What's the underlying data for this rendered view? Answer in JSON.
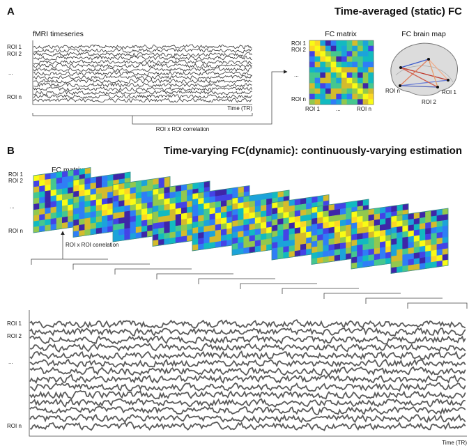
{
  "panel_a": {
    "letter": "A",
    "title": "Time-averaged (static) FC",
    "timeseries_label": "fMRI timeseries",
    "roi_labels": [
      "ROI 1",
      "ROI 2",
      "...",
      "ROI n"
    ],
    "time_label": "Time (TR)",
    "correlation_label": "ROI x ROI correlation",
    "matrix_label": "FC matrix",
    "matrix_row_labels": [
      "ROI 1",
      "ROI 2",
      "...",
      "ROI n"
    ],
    "matrix_col_labels": [
      "ROI 1",
      "...",
      "ROI n"
    ],
    "brain_label": "FC brain map",
    "brain_roi_labels": [
      "ROI n",
      "ROI 1",
      "ROI 2"
    ]
  },
  "panel_b": {
    "letter": "B",
    "title": "Time-varying FC(dynamic): continuously-varying estimation",
    "matrix_label": "FC matrix",
    "roi_labels": [
      "ROI 1",
      "ROI 2",
      "...",
      "ROI n"
    ],
    "correlation_label": "ROI x ROI correlation",
    "timeseries_roi_labels": [
      "ROI 1",
      "ROI 2",
      "...",
      "ROI n"
    ],
    "time_label": "Time (TR)"
  }
}
